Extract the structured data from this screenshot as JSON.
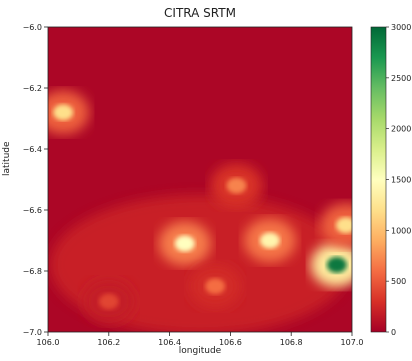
{
  "chart_data": {
    "type": "heatmap",
    "title": "CITRA SRTM",
    "xlabel": "longitude",
    "ylabel": "latitude",
    "xlim": [
      106.0,
      107.0
    ],
    "ylim": [
      -7.0,
      -6.0
    ],
    "x_ticks": [
      "106.0",
      "106.2",
      "106.4",
      "106.6",
      "106.8",
      "107.0"
    ],
    "y_ticks": [
      "-6.0",
      "-6.2",
      "-6.4",
      "-6.6",
      "-6.8",
      "-7.0"
    ],
    "colorbar": {
      "colormap": "RdYlGn",
      "min": 0,
      "max": 3000,
      "ticks": [
        "0",
        "500",
        "1000",
        "1500",
        "2000",
        "2500",
        "3000"
      ]
    },
    "elevation_features": [
      {
        "lon": 106.05,
        "lat": -6.28,
        "value": 1200
      },
      {
        "lon": 106.45,
        "lat": -6.71,
        "value": 1500
      },
      {
        "lon": 106.73,
        "lat": -6.7,
        "value": 1400
      },
      {
        "lon": 106.95,
        "lat": -6.78,
        "value": 2900
      },
      {
        "lon": 106.98,
        "lat": -6.65,
        "value": 1200
      },
      {
        "lon": 106.62,
        "lat": -6.52,
        "value": 700
      },
      {
        "lon": 106.55,
        "lat": -6.85,
        "value": 600
      },
      {
        "lon": 106.2,
        "lat": -6.9,
        "value": 400
      }
    ]
  }
}
